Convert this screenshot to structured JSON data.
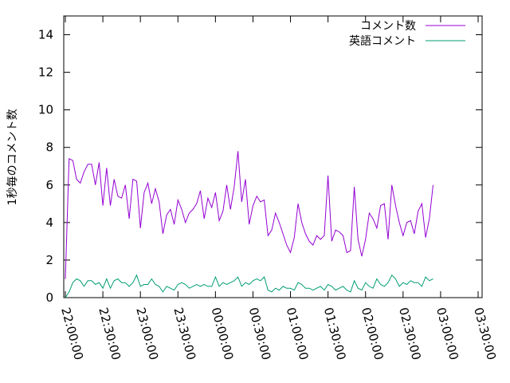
{
  "chart_data": {
    "type": "line",
    "title": "",
    "xlabel": "",
    "ylabel": "1秒毎のコメント数",
    "ylim": [
      0,
      15
    ],
    "y_ticks": [
      "0",
      "2",
      "4",
      "6",
      "8",
      "10",
      "12",
      "14"
    ],
    "x_ticks": [
      "22:00:00",
      "22:30:00",
      "23:00:00",
      "23:30:00",
      "00:00:00",
      "00:30:00",
      "01:00:00",
      "01:30:00",
      "02:00:00",
      "02:30:00",
      "03:00:00",
      "03:30:00"
    ],
    "x_range": [
      "22:00:00",
      "03:30:00"
    ],
    "x_interval_minutes": 3,
    "grid": false,
    "legend_position": "top-right",
    "series": [
      {
        "name": "コメント数",
        "color": "#9400d3",
        "values": [
          1.0,
          7.4,
          7.3,
          6.3,
          6.1,
          6.7,
          7.1,
          7.1,
          6.0,
          7.2,
          4.9,
          6.9,
          4.9,
          6.3,
          5.4,
          5.3,
          6.0,
          4.2,
          6.3,
          6.2,
          3.7,
          5.6,
          6.1,
          5.0,
          5.8,
          5.1,
          3.4,
          4.4,
          4.7,
          3.9,
          5.2,
          4.7,
          4.0,
          4.5,
          4.7,
          5.0,
          5.7,
          4.2,
          5.3,
          4.8,
          5.6,
          4.1,
          4.6,
          6.0,
          4.7,
          5.9,
          7.8,
          5.1,
          6.3,
          3.9,
          4.9,
          5.4,
          5.1,
          5.2,
          3.3,
          3.6,
          4.5,
          4.0,
          3.4,
          2.8,
          2.4,
          3.2,
          5.0,
          4.0,
          3.4,
          3.0,
          2.8,
          3.3,
          3.1,
          3.3,
          6.5,
          3.0,
          3.6,
          3.5,
          3.3,
          2.4,
          2.5,
          5.9,
          3.1,
          2.2,
          3.1,
          4.5,
          4.2,
          3.7,
          4.9,
          5.0,
          3.1,
          6.0,
          4.9,
          4.0,
          3.3,
          4.0,
          4.1,
          3.4,
          4.6,
          5.0,
          3.2,
          4.2,
          6.0
        ]
      },
      {
        "name": "英語コメント",
        "color": "#009e73",
        "values": [
          0.0,
          0.3,
          0.8,
          1.0,
          0.9,
          0.6,
          0.9,
          0.9,
          0.7,
          0.8,
          0.5,
          1.0,
          0.5,
          0.9,
          1.0,
          0.8,
          0.8,
          0.6,
          0.8,
          1.2,
          0.6,
          0.7,
          0.7,
          1.0,
          0.7,
          0.6,
          0.3,
          0.6,
          0.5,
          0.4,
          0.7,
          0.8,
          0.7,
          0.5,
          0.6,
          0.7,
          0.6,
          0.7,
          0.6,
          0.6,
          1.1,
          0.6,
          0.8,
          0.7,
          0.8,
          0.9,
          1.1,
          0.6,
          0.8,
          0.7,
          0.9,
          1.0,
          0.9,
          1.1,
          0.4,
          0.3,
          0.5,
          0.4,
          0.6,
          0.5,
          0.5,
          0.4,
          0.8,
          0.7,
          0.5,
          0.5,
          0.4,
          0.5,
          0.6,
          0.4,
          0.7,
          0.6,
          0.4,
          0.5,
          0.6,
          0.4,
          0.3,
          0.9,
          0.5,
          0.4,
          0.8,
          0.6,
          0.5,
          1.0,
          0.7,
          0.6,
          0.8,
          1.2,
          1.0,
          0.6,
          0.8,
          0.7,
          0.9,
          0.8,
          0.8,
          0.6,
          1.1,
          0.9,
          1.0
        ]
      }
    ]
  }
}
